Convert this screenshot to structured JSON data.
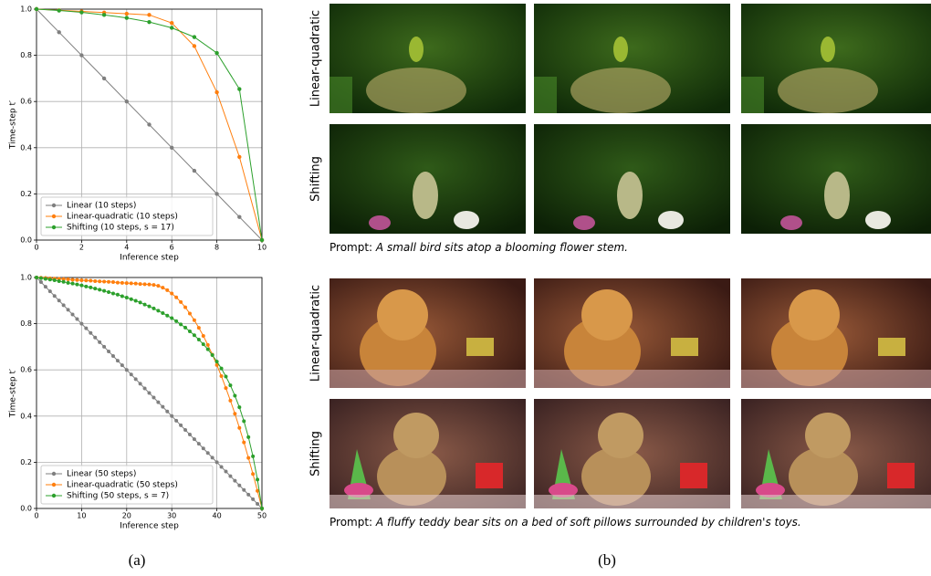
{
  "chart_data": [
    {
      "type": "line",
      "xlabel": "Inference step",
      "ylabel": "Time-step t′",
      "x": [
        0,
        1,
        2,
        3,
        4,
        5,
        6,
        7,
        8,
        9,
        10
      ],
      "xlim": [
        0,
        10
      ],
      "ylim": [
        0,
        1
      ],
      "xticks": [
        0,
        2,
        4,
        6,
        8,
        10
      ],
      "yticks": [
        {
          "value": 0,
          "label": "0.0"
        },
        0.2,
        0.4,
        0.6,
        0.8,
        {
          "value": 1,
          "label": "1.0"
        }
      ],
      "grid": true,
      "legend": "lower left",
      "series": [
        {
          "name": "Linear (10 steps)",
          "color": "#7f7f7f",
          "values": [
            1,
            0.9,
            0.8,
            0.7,
            0.6,
            0.5,
            0.4,
            0.3,
            0.2,
            0.1,
            0
          ]
        },
        {
          "name": "Linear-quadratic (10 steps)",
          "color": "#ff7f0e",
          "values": [
            1,
            0.995,
            0.99,
            0.985,
            0.98,
            0.975,
            0.94,
            0.84,
            0.64,
            0.36,
            0
          ]
        },
        {
          "name": "Shifting (10 steps, s = 17)",
          "color": "#2ca02c",
          "values": [
            1,
            0.994,
            0.986,
            0.975,
            0.962,
            0.944,
            0.919,
            0.879,
            0.81,
            0.654,
            0
          ]
        }
      ]
    },
    {
      "type": "line",
      "xlabel": "Inference step",
      "ylabel": "Time-step t′",
      "x": [
        0,
        1,
        2,
        3,
        4,
        5,
        6,
        7,
        8,
        9,
        10,
        11,
        12,
        13,
        14,
        15,
        16,
        17,
        18,
        19,
        20,
        21,
        22,
        23,
        24,
        25,
        26,
        27,
        28,
        29,
        30,
        31,
        32,
        33,
        34,
        35,
        36,
        37,
        38,
        39,
        40,
        41,
        42,
        43,
        44,
        45,
        46,
        47,
        48,
        49,
        50
      ],
      "xlim": [
        0,
        50
      ],
      "ylim": [
        0,
        1
      ],
      "xticks": [
        0,
        10,
        20,
        30,
        40,
        50
      ],
      "yticks": [
        {
          "value": 0,
          "label": "0.0"
        },
        0.2,
        0.4,
        0.6,
        0.8,
        {
          "value": 1,
          "label": "1.0"
        }
      ],
      "grid": true,
      "legend": "lower left",
      "series": [
        {
          "name": "Linear (50 steps)",
          "color": "#7f7f7f",
          "values": [
            1,
            0.98,
            0.96,
            0.94,
            0.92,
            0.9,
            0.88,
            0.86,
            0.84,
            0.82,
            0.8,
            0.78,
            0.76,
            0.74,
            0.72,
            0.7,
            0.68,
            0.66,
            0.64,
            0.62,
            0.6,
            0.58,
            0.56,
            0.54,
            0.52,
            0.5,
            0.48,
            0.46,
            0.44,
            0.42,
            0.4,
            0.38,
            0.36,
            0.34,
            0.32,
            0.3,
            0.28,
            0.26,
            0.24,
            0.22,
            0.2,
            0.18,
            0.16,
            0.14,
            0.12,
            0.1,
            0.08,
            0.06,
            0.04,
            0.02,
            0
          ]
        },
        {
          "name": "Linear-quadratic (50 steps)",
          "color": "#ff7f0e",
          "values": [
            1,
            0.999,
            0.998,
            0.996,
            0.995,
            0.994,
            0.993,
            0.992,
            0.99,
            0.989,
            0.988,
            0.987,
            0.986,
            0.984,
            0.983,
            0.982,
            0.981,
            0.98,
            0.978,
            0.977,
            0.976,
            0.975,
            0.974,
            0.972,
            0.971,
            0.97,
            0.968,
            0.964,
            0.956,
            0.945,
            0.931,
            0.914,
            0.894,
            0.871,
            0.844,
            0.815,
            0.782,
            0.747,
            0.708,
            0.666,
            0.621,
            0.573,
            0.521,
            0.467,
            0.41,
            0.349,
            0.286,
            0.219,
            0.149,
            0.076,
            0
          ]
        },
        {
          "name": "Shifting (50 steps, s = 7)",
          "color": "#2ca02c",
          "values": [
            1,
            0.997,
            0.994,
            0.991,
            0.988,
            0.984,
            0.981,
            0.977,
            0.974,
            0.97,
            0.966,
            0.961,
            0.957,
            0.952,
            0.947,
            0.942,
            0.937,
            0.931,
            0.926,
            0.919,
            0.913,
            0.906,
            0.899,
            0.892,
            0.883,
            0.875,
            0.866,
            0.856,
            0.846,
            0.835,
            0.824,
            0.811,
            0.797,
            0.783,
            0.767,
            0.75,
            0.731,
            0.711,
            0.689,
            0.664,
            0.636,
            0.606,
            0.571,
            0.533,
            0.488,
            0.438,
            0.378,
            0.309,
            0.226,
            0.125,
            0
          ]
        }
      ]
    }
  ],
  "image_groups": [
    {
      "rows": [
        "Linear-quadratic",
        "Shifting"
      ],
      "prompt_label": "Prompt:",
      "prompt": "A small bird sits atop a blooming flower stem."
    },
    {
      "rows": [
        "Linear-quadratic",
        "Shifting"
      ],
      "prompt_label": "Prompt:",
      "prompt": "A fluffy teddy bear sits on a bed of soft pillows surrounded by children's toys."
    }
  ],
  "captions": [
    "(a)",
    "(b)"
  ]
}
